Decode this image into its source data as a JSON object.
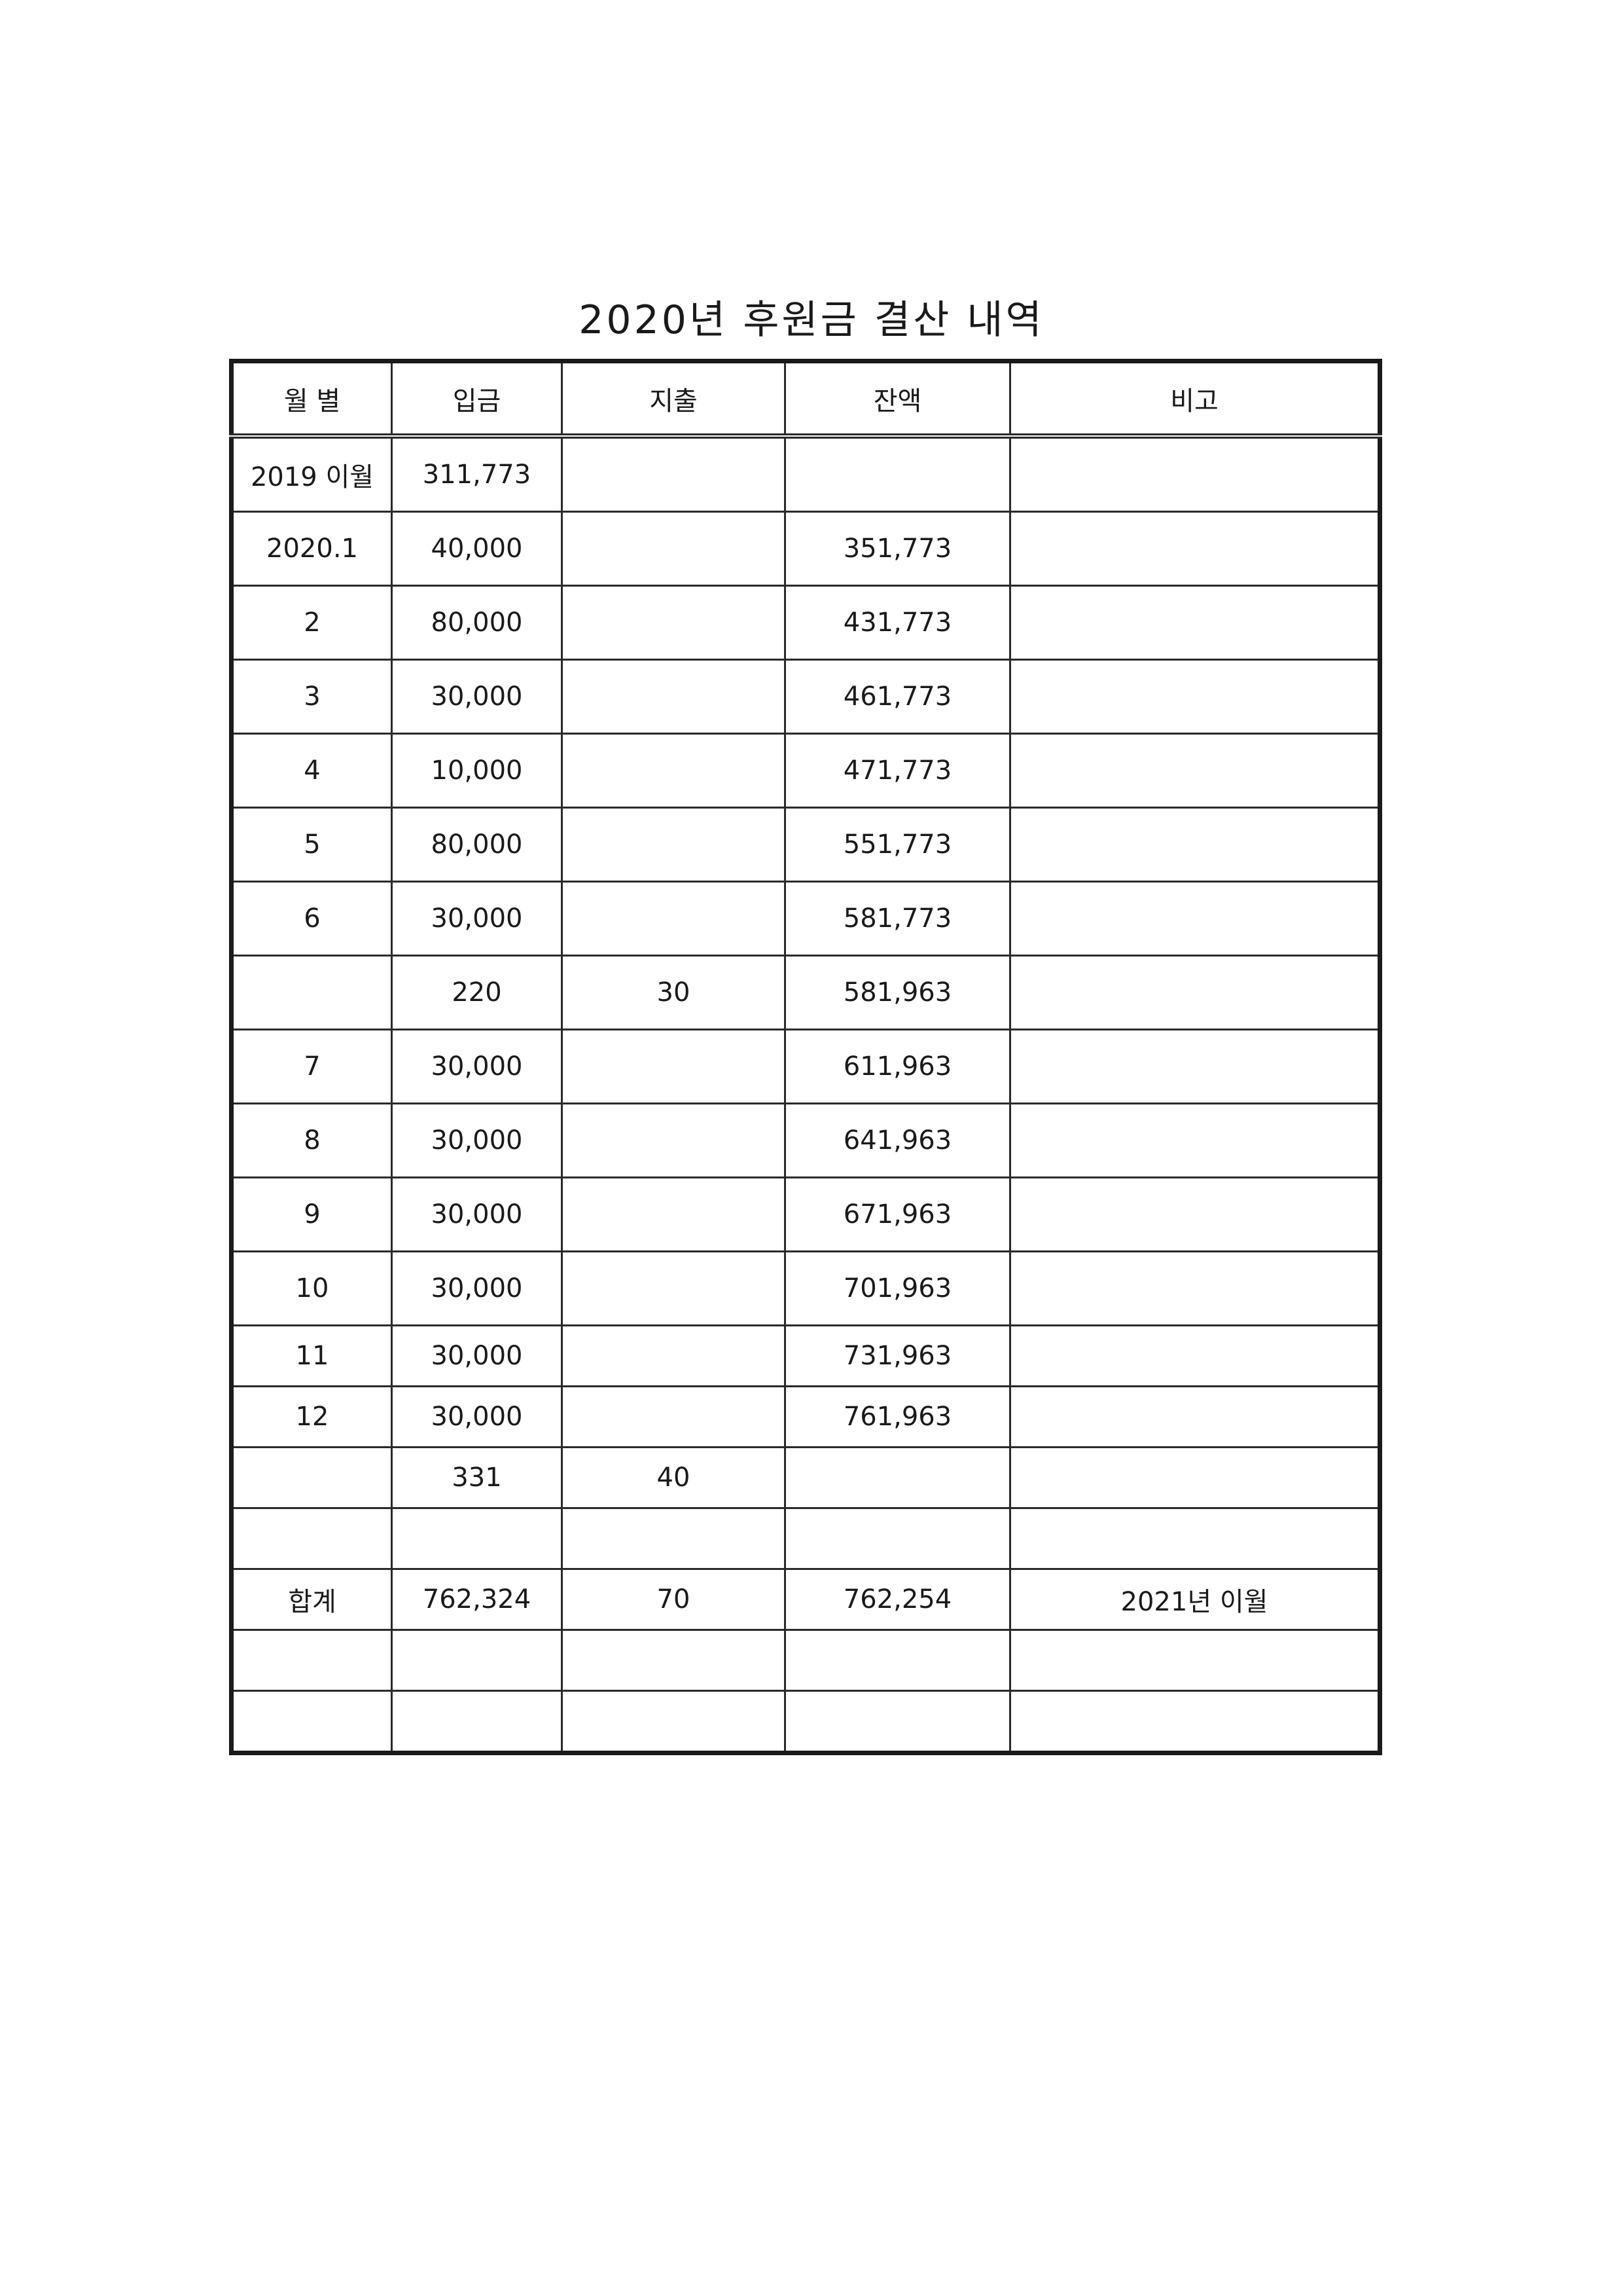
{
  "title": "2020년 후원금 결산 내역",
  "table": {
    "headers": [
      "월 별",
      "입금",
      "지출",
      "잔액",
      "비고"
    ],
    "rows": [
      [
        "2019 이월",
        "311,773",
        "",
        "",
        ""
      ],
      [
        "2020.1",
        "40,000",
        "",
        "351,773",
        ""
      ],
      [
        "2",
        "80,000",
        "",
        "431,773",
        ""
      ],
      [
        "3",
        "30,000",
        "",
        "461,773",
        ""
      ],
      [
        "4",
        "10,000",
        "",
        "471,773",
        ""
      ],
      [
        "5",
        "80,000",
        "",
        "551,773",
        ""
      ],
      [
        "6",
        "30,000",
        "",
        "581,773",
        ""
      ],
      [
        "",
        "220",
        "30",
        "581,963",
        ""
      ],
      [
        "7",
        "30,000",
        "",
        "611,963",
        ""
      ],
      [
        "8",
        "30,000",
        "",
        "641,963",
        ""
      ],
      [
        "9",
        "30,000",
        "",
        "671,963",
        ""
      ],
      [
        "10",
        "30,000",
        "",
        "701,963",
        ""
      ],
      [
        "11",
        "30,000",
        "",
        "731,963",
        ""
      ],
      [
        "12",
        "30,000",
        "",
        "761,963",
        ""
      ],
      [
        "",
        "331",
        "40",
        "",
        ""
      ],
      [
        "",
        "",
        "",
        "",
        ""
      ],
      [
        "합계",
        "762,324",
        "70",
        "762,254",
        "2021년 이월"
      ],
      [
        "",
        "",
        "",
        "",
        ""
      ],
      [
        "",
        "",
        "",
        "",
        ""
      ]
    ]
  }
}
